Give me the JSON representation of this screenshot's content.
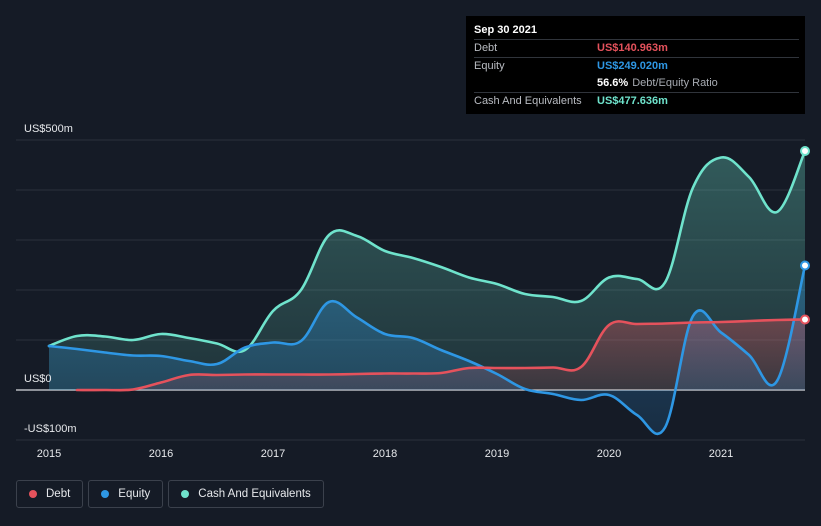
{
  "tooltip": {
    "date": "Sep 30 2021",
    "rows": [
      {
        "label": "Debt",
        "value": "US$140.963m",
        "color": "#e5525c"
      },
      {
        "label": "Equity",
        "value": "US$249.020m",
        "color": "#2e97e4"
      },
      {
        "label": "",
        "value": "56.6%",
        "suffix": "Debt/Equity Ratio",
        "color": "#ffffff"
      },
      {
        "label": "Cash And Equivalents",
        "value": "US$477.636m",
        "color": "#6fe3cc"
      }
    ]
  },
  "legend": [
    {
      "label": "Debt",
      "color": "#e5525c"
    },
    {
      "label": "Equity",
      "color": "#2e97e4"
    },
    {
      "label": "Cash And Equivalents",
      "color": "#6fe3cc"
    }
  ],
  "chart_data": {
    "type": "area",
    "title": "",
    "xlabel": "",
    "ylabel": "",
    "unit": "US$m",
    "ylim": [
      -100,
      500
    ],
    "xlim": [
      2015.0,
      2021.75
    ],
    "y_ticks": [
      {
        "value": 500,
        "label": "US$500m"
      },
      {
        "value": 0,
        "label": "US$0"
      },
      {
        "value": -100,
        "label": "-US$100m"
      }
    ],
    "x_ticks": [
      {
        "value": 2015,
        "label": "2015"
      },
      {
        "value": 2016,
        "label": "2016"
      },
      {
        "value": 2017,
        "label": "2017"
      },
      {
        "value": 2018,
        "label": "2018"
      },
      {
        "value": 2019,
        "label": "2019"
      },
      {
        "value": 2020,
        "label": "2020"
      },
      {
        "value": 2021,
        "label": "2021"
      }
    ],
    "grid": true,
    "series": [
      {
        "name": "Cash And Equivalents",
        "color": "#6fe3cc",
        "points": [
          [
            2015.0,
            88
          ],
          [
            2015.25,
            108
          ],
          [
            2015.5,
            107
          ],
          [
            2015.75,
            100
          ],
          [
            2016.0,
            112
          ],
          [
            2016.25,
            104
          ],
          [
            2016.5,
            93
          ],
          [
            2016.75,
            80
          ],
          [
            2017.0,
            158
          ],
          [
            2017.25,
            200
          ],
          [
            2017.5,
            310
          ],
          [
            2017.75,
            308
          ],
          [
            2018.0,
            278
          ],
          [
            2018.25,
            264
          ],
          [
            2018.5,
            246
          ],
          [
            2018.75,
            225
          ],
          [
            2019.0,
            212
          ],
          [
            2019.25,
            192
          ],
          [
            2019.5,
            186
          ],
          [
            2019.75,
            178
          ],
          [
            2020.0,
            225
          ],
          [
            2020.25,
            222
          ],
          [
            2020.5,
            215
          ],
          [
            2020.75,
            405
          ],
          [
            2021.0,
            465
          ],
          [
            2021.25,
            426
          ],
          [
            2021.5,
            356
          ],
          [
            2021.75,
            478
          ]
        ]
      },
      {
        "name": "Equity",
        "color": "#2e97e4",
        "points": [
          [
            2015.0,
            88
          ],
          [
            2015.25,
            82
          ],
          [
            2015.5,
            75
          ],
          [
            2015.75,
            69
          ],
          [
            2016.0,
            68
          ],
          [
            2016.25,
            58
          ],
          [
            2016.5,
            52
          ],
          [
            2016.75,
            85
          ],
          [
            2017.0,
            95
          ],
          [
            2017.25,
            98
          ],
          [
            2017.5,
            176
          ],
          [
            2017.75,
            145
          ],
          [
            2018.0,
            112
          ],
          [
            2018.25,
            104
          ],
          [
            2018.5,
            80
          ],
          [
            2018.75,
            58
          ],
          [
            2019.0,
            32
          ],
          [
            2019.25,
            2
          ],
          [
            2019.5,
            -8
          ],
          [
            2019.75,
            -20
          ],
          [
            2020.0,
            -10
          ],
          [
            2020.25,
            -50
          ],
          [
            2020.5,
            -75
          ],
          [
            2020.75,
            148
          ],
          [
            2021.0,
            115
          ],
          [
            2021.25,
            70
          ],
          [
            2021.5,
            18
          ],
          [
            2021.75,
            249
          ]
        ]
      },
      {
        "name": "Debt",
        "color": "#e5525c",
        "points": [
          [
            2015.25,
            0
          ],
          [
            2015.5,
            0
          ],
          [
            2015.75,
            1
          ],
          [
            2016.0,
            15
          ],
          [
            2016.25,
            30
          ],
          [
            2016.5,
            30
          ],
          [
            2016.75,
            31
          ],
          [
            2017.0,
            31
          ],
          [
            2017.25,
            31
          ],
          [
            2017.5,
            31
          ],
          [
            2017.75,
            32
          ],
          [
            2018.0,
            33
          ],
          [
            2018.25,
            33
          ],
          [
            2018.5,
            34
          ],
          [
            2018.75,
            44
          ],
          [
            2019.0,
            44
          ],
          [
            2019.25,
            44
          ],
          [
            2019.5,
            45
          ],
          [
            2019.75,
            46
          ],
          [
            2020.0,
            130
          ],
          [
            2020.25,
            132
          ],
          [
            2020.5,
            133
          ],
          [
            2020.75,
            135
          ],
          [
            2021.0,
            136
          ],
          [
            2021.25,
            138
          ],
          [
            2021.5,
            140
          ],
          [
            2021.75,
            141
          ]
        ]
      }
    ]
  }
}
